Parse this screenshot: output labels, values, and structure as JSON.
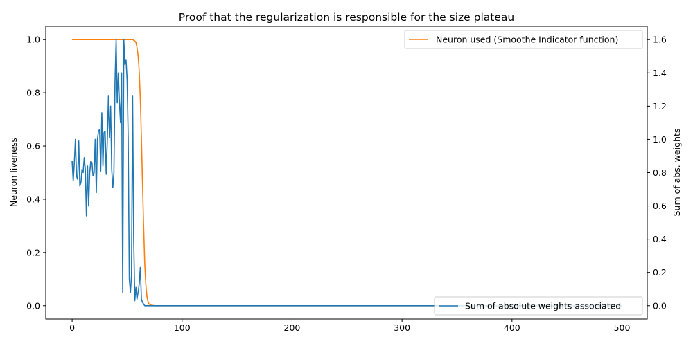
{
  "chart_data": {
    "type": "line",
    "title": "Proof that the regularization is responsible for the size plateau",
    "xlabel": "",
    "ylabel_left": "Neuron liveness",
    "ylabel_right": "Sum of abs. weights",
    "xlim": [
      -24,
      523
    ],
    "ylim_left": [
      -0.05,
      1.05
    ],
    "ylim_right": [
      -0.08,
      1.68
    ],
    "xticks": [
      0,
      100,
      200,
      300,
      400,
      500
    ],
    "yticks_left": [
      0.0,
      0.2,
      0.4,
      0.6,
      0.8,
      1.0
    ],
    "yticks_right": [
      0.0,
      0.2,
      0.4,
      0.6,
      0.8,
      1.0,
      1.2,
      1.4,
      1.6
    ],
    "grid": false,
    "legend_left": {
      "placement": "upper-right",
      "entry": "Neuron used (Smoothe Indicator function)",
      "color": "#ff7f0e"
    },
    "legend_right": {
      "placement": "lower-right",
      "entry": "Sum of absolute weights associated",
      "color": "#1f77b4"
    },
    "series": [
      {
        "name": "Neuron used (Smoothe Indicator function)",
        "axis": "left",
        "color": "#ff7f0e",
        "x": [
          0,
          20,
          40,
          50,
          55,
          57,
          58,
          59,
          60,
          61,
          62,
          63,
          64,
          65,
          66,
          67,
          68,
          69,
          70,
          72,
          75,
          100,
          200,
          300,
          400,
          500
        ],
        "y": [
          1.0,
          1.0,
          1.0,
          1.0,
          1.0,
          0.995,
          0.99,
          0.97,
          0.94,
          0.88,
          0.78,
          0.63,
          0.46,
          0.3,
          0.16,
          0.08,
          0.035,
          0.015,
          0.006,
          0.002,
          0.0,
          0.0,
          0.0,
          0.0,
          0.0,
          0.0
        ]
      },
      {
        "name": "Sum of absolute weights associated",
        "axis": "right",
        "color": "#1f77b4",
        "x": [
          0,
          1,
          2,
          3,
          4,
          5,
          6,
          7,
          8,
          9,
          10,
          11,
          12,
          13,
          14,
          15,
          16,
          17,
          18,
          19,
          20,
          21,
          22,
          23,
          24,
          25,
          26,
          27,
          28,
          29,
          30,
          31,
          32,
          33,
          34,
          35,
          36,
          37,
          38,
          39,
          40,
          41,
          42,
          43,
          44,
          45,
          46,
          47,
          48,
          49,
          50,
          51,
          52,
          53,
          54,
          55,
          56,
          57,
          58,
          59,
          60,
          61,
          62,
          63,
          64,
          65,
          66,
          67,
          68,
          69,
          70,
          75,
          100,
          200,
          300,
          400,
          500
        ],
        "y": [
          0.87,
          0.75,
          0.86,
          1.0,
          0.78,
          0.76,
          0.99,
          0.72,
          0.74,
          0.82,
          0.8,
          0.89,
          0.82,
          0.54,
          0.84,
          0.6,
          0.8,
          0.87,
          0.86,
          0.78,
          0.8,
          1.0,
          0.68,
          1.0,
          1.05,
          1.06,
          0.81,
          1.16,
          0.84,
          1.04,
          1.05,
          0.79,
          1.0,
          1.26,
          1.01,
          1.2,
          0.82,
          0.71,
          0.8,
          1.35,
          1.6,
          1.22,
          1.4,
          1.22,
          1.1,
          1.4,
          0.08,
          1.6,
          1.45,
          1.48,
          1.36,
          1.0,
          0.16,
          0.08,
          0.18,
          1.26,
          0.4,
          0.03,
          0.11,
          0.04,
          0.08,
          0.13,
          0.23,
          0.04,
          0.02,
          0.01,
          0.0,
          0.0,
          0.0,
          0.0,
          0.0,
          0.0,
          0.0,
          0.0,
          0.0,
          0.0,
          0.0
        ]
      }
    ]
  }
}
